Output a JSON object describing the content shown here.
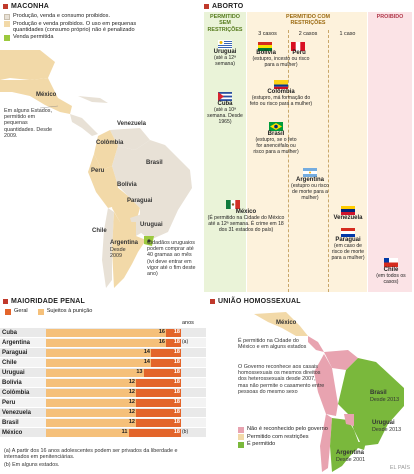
{
  "maconha": {
    "title": "MACONHA",
    "legend": [
      {
        "label": "Produção, venda e consumo proibidos.",
        "color": "#e8e1d6"
      },
      {
        "label": "Produção e venda proibidos. O uso em pequenas quantidades (consumo próprio) não é penalizado",
        "color": "#f2d9a8"
      },
      {
        "label": "Venda permitida",
        "color": "#9cc93e"
      }
    ],
    "labels": [
      "México",
      "Venezuela",
      "Colômbia",
      "Peru",
      "Brasil",
      "Bolívia",
      "Paraguai",
      "Chile",
      "Argentina",
      "Uruguai"
    ],
    "argentina_note": "Desde 2009",
    "usa_note": "Em alguns Estados, permitido em pequenas quantidades. Desde 2009.",
    "uruguay_note": "Cidadãos uruguaios podem comprar até 40 gramas ao mês (ivi deve entrar em vigor até o fim deste ano)"
  },
  "aborto": {
    "title": "ABORTO",
    "col_permitido_sem": "PERMITIDO SEM RESTRIÇÕES",
    "col_permitido_com": "PERMITIDO COM RESTRIÇÕES",
    "col_proibido": "PROIBIDO",
    "sub_3": "3 casos",
    "sub_2": "2 casos",
    "sub_1": "1 caso",
    "entries": [
      {
        "name": "Uruguai",
        "note": "(até a 12ª semana)"
      },
      {
        "name": "Cuba",
        "note": "(até a 10ª semana. Desde 1965)"
      },
      {
        "name": "México",
        "note": "(É permitido na Cidade do México até a 12ª semana. É crime em 18 dos 31 estados do país)"
      },
      {
        "name": "Bolívia",
        "note": "(estupro, incesto ou risco para a mulher)"
      },
      {
        "name": "Peru",
        "note": ""
      },
      {
        "name": "Colômbia",
        "note": "(estupro, má formação do feto ou risco para a mulher)"
      },
      {
        "name": "Brasil",
        "note": "(estupro, se o feto for anencéfalo ou risco para a mulher)"
      },
      {
        "name": "Argentina",
        "note": "(estupro ou risco de morte para a mulher)"
      },
      {
        "name": "Venezuela",
        "note": ""
      },
      {
        "name": "Paraguai",
        "note": "(em caso de risco de morte para a mulher)"
      },
      {
        "name": "Chile",
        "note": "(em todos os casos)"
      }
    ]
  },
  "penal": {
    "title": "MAIORIDADE PENAL",
    "legend_geral": "Geral",
    "legend_sujeitos": "Sujeitos à punição",
    "anos": "anos",
    "footnote_a": "(a) A partir dos 16 anos adolescentes podem ser privados da liberdade e internados em penitenciárias.",
    "footnote_b": "(b) Em alguns estados.",
    "rows": [
      {
        "country": "Cuba",
        "sujeitos": 16,
        "geral": 18,
        "mark": ""
      },
      {
        "country": "Argentina",
        "sujeitos": 16,
        "geral": 18,
        "mark": "(a)"
      },
      {
        "country": "Paraguai",
        "sujeitos": 14,
        "geral": 18,
        "mark": ""
      },
      {
        "country": "Chile",
        "sujeitos": 14,
        "geral": 18,
        "mark": ""
      },
      {
        "country": "Uruguai",
        "sujeitos": 13,
        "geral": 18,
        "mark": ""
      },
      {
        "country": "Bolívia",
        "sujeitos": 12,
        "geral": 18,
        "mark": ""
      },
      {
        "country": "Colômbia",
        "sujeitos": 12,
        "geral": 18,
        "mark": ""
      },
      {
        "country": "Peru",
        "sujeitos": 12,
        "geral": 18,
        "mark": ""
      },
      {
        "country": "Venezuela",
        "sujeitos": 12,
        "geral": 18,
        "mark": ""
      },
      {
        "country": "Brasil",
        "sujeitos": 12,
        "geral": 18,
        "mark": ""
      },
      {
        "country": "México",
        "sujeitos": 11,
        "geral": 18,
        "mark": "(b)"
      }
    ]
  },
  "uniao": {
    "title": "UNIÃO HOMOSSEXUAL",
    "mexico_note": "É permitido na Cidade do México e em alguns estados",
    "uruguai_note": "O Governo reconhece aos casais homossexuais os mesmos direitos dos heterossexuais desde 2007, mas não permite o casamento entre pessoas do mesmo sexo",
    "labels": {
      "mexico": "México",
      "brasil": "Brasil",
      "brasil_year": "Desde 2013",
      "uruguai": "Uruguai",
      "uruguai_year": "Desde 2013",
      "argentina": "Argentina",
      "argentina_year": "Desde 2001"
    },
    "legend": [
      {
        "label": "Não é reconhecido pelo governo",
        "color": "#e8a3b0"
      },
      {
        "label": "Permitido com restrições",
        "color": "#f2d9a8"
      },
      {
        "label": "É permitido",
        "color": "#7ab83c"
      }
    ]
  },
  "credit": "EL PAÍS"
}
